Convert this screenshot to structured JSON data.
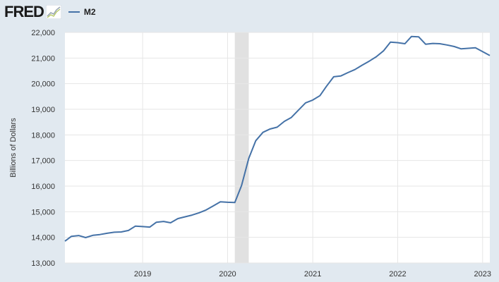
{
  "header": {
    "logo_text": "FRED",
    "legend_label": "M2"
  },
  "colors": {
    "series": "#4572a7",
    "recession": "#e1e1e1",
    "background": "#e1e9f0",
    "plot": "#ffffff",
    "grid": "#e6e6e6"
  },
  "chart_data": {
    "type": "line",
    "title": "",
    "xlabel": "",
    "ylabel": "Billions of Dollars",
    "ylim": [
      13000,
      22000
    ],
    "xlim": [
      "2018-02-01",
      "2023-02-01"
    ],
    "yticks": [
      13000,
      14000,
      15000,
      16000,
      17000,
      18000,
      19000,
      20000,
      21000,
      22000
    ],
    "ytick_labels": [
      "13,000",
      "14,000",
      "15,000",
      "16,000",
      "17,000",
      "18,000",
      "19,000",
      "20,000",
      "21,000",
      "22,000"
    ],
    "xticks": [
      "2019-01-01",
      "2020-01-01",
      "2021-01-01",
      "2022-01-01",
      "2023-01-01"
    ],
    "xtick_labels": [
      "2019",
      "2020",
      "2021",
      "2022",
      "2023"
    ],
    "grid": true,
    "recessions": [
      {
        "start": "2020-02-01",
        "end": "2020-04-01"
      }
    ],
    "series": [
      {
        "name": "M2",
        "x": [
          "2018-02",
          "2018-03",
          "2018-04",
          "2018-05",
          "2018-06",
          "2018-07",
          "2018-08",
          "2018-09",
          "2018-10",
          "2018-11",
          "2018-12",
          "2019-01",
          "2019-02",
          "2019-03",
          "2019-04",
          "2019-05",
          "2019-06",
          "2019-07",
          "2019-08",
          "2019-09",
          "2019-10",
          "2019-11",
          "2019-12",
          "2020-01",
          "2020-02",
          "2020-03",
          "2020-04",
          "2020-05",
          "2020-06",
          "2020-07",
          "2020-08",
          "2020-09",
          "2020-10",
          "2020-11",
          "2020-12",
          "2021-01",
          "2021-02",
          "2021-03",
          "2021-04",
          "2021-05",
          "2021-06",
          "2021-07",
          "2021-08",
          "2021-09",
          "2021-10",
          "2021-11",
          "2021-12",
          "2022-01",
          "2022-02",
          "2022-03",
          "2022-04",
          "2022-05",
          "2022-06",
          "2022-07",
          "2022-08",
          "2022-09",
          "2022-10",
          "2022-11",
          "2022-12",
          "2023-01",
          "2023-02"
        ],
        "values": [
          13850,
          14040,
          14070,
          13990,
          14080,
          14110,
          14160,
          14200,
          14210,
          14270,
          14440,
          14420,
          14400,
          14590,
          14620,
          14570,
          14730,
          14800,
          14870,
          14960,
          15070,
          15230,
          15390,
          15370,
          15360,
          16020,
          17080,
          17770,
          18100,
          18230,
          18300,
          18530,
          18680,
          18970,
          19250,
          19360,
          19530,
          19900,
          20270,
          20300,
          20430,
          20550,
          20720,
          20880,
          21050,
          21280,
          21620,
          21600,
          21560,
          21840,
          21830,
          21540,
          21570,
          21560,
          21510,
          21450,
          21360,
          21380,
          21400,
          21250,
          21100
        ]
      }
    ]
  }
}
